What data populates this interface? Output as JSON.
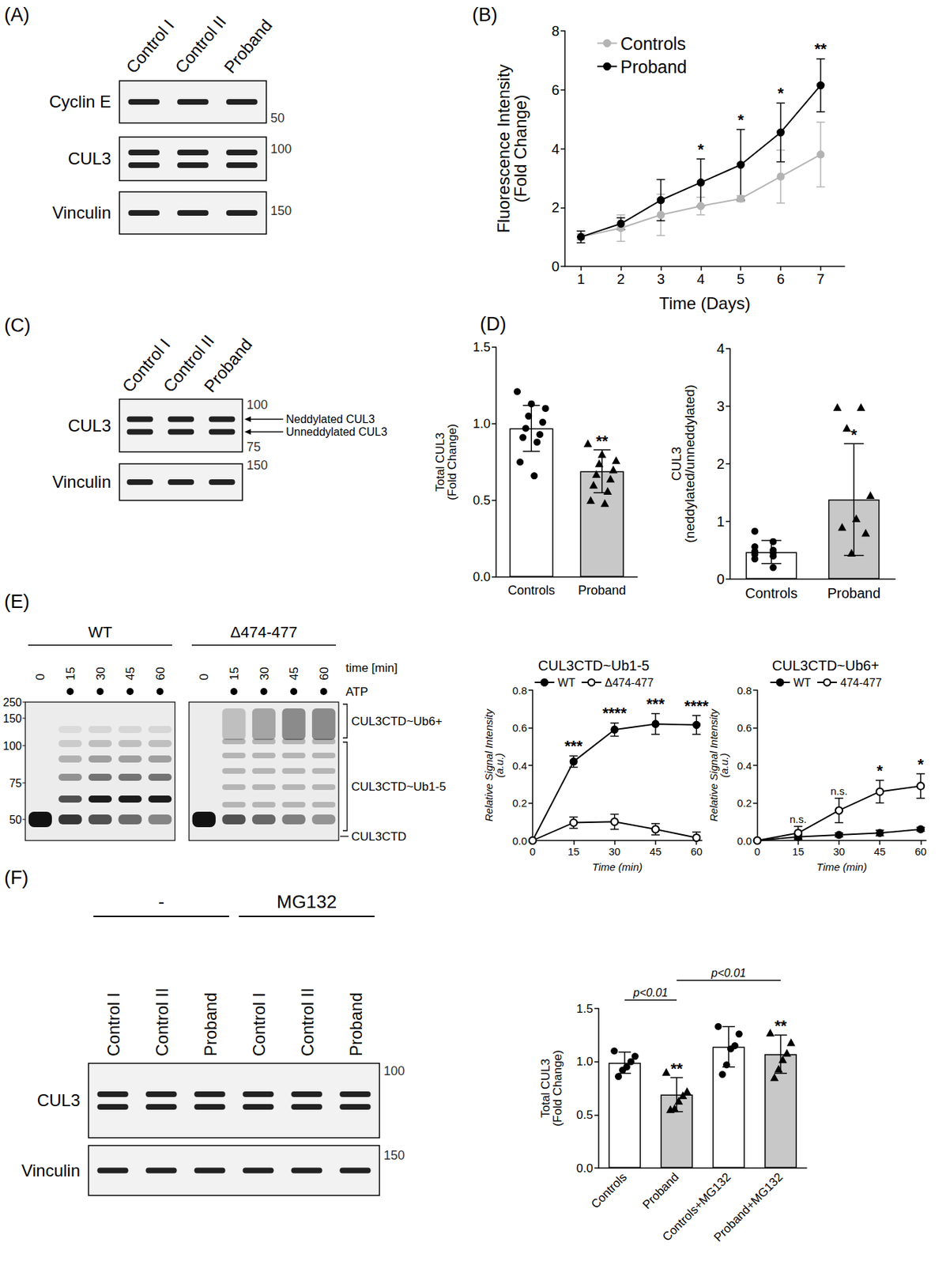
{
  "panel_labels": [
    "(A)",
    "(B)",
    "(C)",
    "(D)",
    "(E)",
    "(F)"
  ],
  "blots": [
    {
      "lanes": [
        "Control I",
        "Control II",
        "Proband"
      ],
      "rows": [
        {
          "label": "Cyclin E",
          "bands": 1,
          "markers": [
            50
          ]
        },
        {
          "label": "CUL3",
          "bands": 2,
          "markers": [
            100
          ]
        },
        {
          "label": "Vinculin",
          "bands": 1,
          "markers": [
            150
          ]
        }
      ]
    },
    {
      "lanes": [
        "Control I",
        "Control II",
        "Proband"
      ],
      "rows": [
        {
          "label": "CUL3",
          "bands": 2,
          "markers": [
            100,
            75
          ],
          "band_labels": [
            "Neddylated CUL3",
            "Unneddylated CUL3"
          ]
        },
        {
          "label": "Vinculin",
          "bands": 1,
          "markers": [
            150
          ]
        }
      ]
    },
    {
      "groups": [
        {
          "label": "-",
          "lanes": [
            "Control I",
            "Control II",
            "Proband"
          ]
        },
        {
          "label": "MG132",
          "lanes": [
            "Control I",
            "Control II",
            "Proband"
          ]
        }
      ],
      "rows": [
        {
          "label": "CUL3",
          "bands": 2,
          "markers": [
            100
          ]
        },
        {
          "label": "Vinculin",
          "bands": 1,
          "markers": [
            150
          ]
        }
      ]
    }
  ],
  "gel": {
    "groups": [
      {
        "label": "WT",
        "times": [
          0,
          15,
          30,
          45,
          60
        ],
        "atp": [
          false,
          true,
          true,
          true,
          true
        ]
      },
      {
        "label": "Δ474-477",
        "times": [
          0,
          15,
          30,
          45,
          60
        ],
        "atp": [
          false,
          true,
          true,
          true,
          true
        ]
      }
    ],
    "time_label": "time [min]",
    "atp_label": "ATP",
    "markers": [
      250,
      150,
      100,
      75,
      50
    ],
    "species": [
      "CUL3CTD~Ub6+",
      "CUL3CTD~Ub1-5",
      "CUL3CTD"
    ]
  },
  "chart_data": [
    {
      "type": "line",
      "x": [
        1,
        2,
        3,
        4,
        5,
        6,
        7
      ],
      "xlim": [
        0.6,
        7.6
      ],
      "xticks": [
        1,
        2,
        3,
        4,
        5,
        6,
        7
      ],
      "ylim": [
        0,
        8
      ],
      "yticks": [
        0,
        2,
        4,
        6,
        8
      ],
      "xlabel": "Time (Days)",
      "ylabel": "Fluorescence Intensity (Fold Change)",
      "legend": "top-left",
      "grid": false,
      "series": [
        {
          "name": "Controls",
          "color": "#b3b3b3",
          "marker": "circle",
          "values": [
            1.0,
            1.3,
            1.75,
            2.05,
            2.3,
            3.05,
            3.8
          ],
          "errors": [
            0.1,
            0.45,
            0.7,
            0.3,
            0.1,
            0.9,
            1.1
          ]
        },
        {
          "name": "Proband",
          "color": "#000000",
          "marker": "circle",
          "values": [
            1.0,
            1.45,
            2.25,
            2.85,
            3.45,
            4.55,
            6.15
          ],
          "errors": [
            0.2,
            0.2,
            0.7,
            0.8,
            1.2,
            1.0,
            0.9
          ],
          "annotations": [
            null,
            null,
            null,
            "*",
            "*",
            "*",
            "**"
          ]
        }
      ]
    },
    {
      "type": "bar",
      "categories": [
        "Controls",
        "Proband"
      ],
      "values": [
        0.97,
        0.69
      ],
      "errors": [
        0.15,
        0.14
      ],
      "colors": [
        "#ffffff",
        "#c8c8c8"
      ],
      "annotations": [
        null,
        "**"
      ],
      "points": [
        {
          "marker": "circle",
          "values": [
            1.21,
            1.13,
            1.1,
            1.05,
            1.01,
            0.97,
            0.93,
            0.91,
            0.88,
            0.75,
            0.66
          ]
        },
        {
          "marker": "triangle",
          "values": [
            0.87,
            0.8,
            0.76,
            0.74,
            0.7,
            0.67,
            0.64,
            0.6,
            0.56,
            0.5,
            0.48
          ]
        }
      ],
      "ylabel": "Total CUL3 (Fold Change)",
      "ylim": [
        0,
        1.5
      ],
      "yticks": [
        {
          "value": 0,
          "label": "0.0"
        },
        0.5,
        {
          "value": 1,
          "label": "1.0"
        },
        1.5
      ],
      "grid": false
    },
    {
      "type": "bar",
      "categories": [
        "Controls",
        "Proband"
      ],
      "values": [
        0.47,
        1.38
      ],
      "errors": [
        0.2,
        0.97
      ],
      "colors": [
        "#ffffff",
        "#c8c8c8"
      ],
      "annotations": [
        null,
        "*"
      ],
      "points": [
        {
          "marker": "circle",
          "values": [
            0.83,
            0.65,
            0.56,
            0.5,
            0.48,
            0.45,
            0.43,
            0.4,
            0.35,
            0.2
          ]
        },
        {
          "marker": "triangle",
          "values": [
            2.98,
            2.98,
            2.62,
            1.45,
            1.05,
            0.9,
            0.8,
            0.45
          ]
        }
      ],
      "ylabel": "CUL3 (neddylated/unneddylated)",
      "ylim": [
        0,
        4
      ],
      "yticks": [
        0,
        1,
        2,
        3,
        4
      ],
      "grid": false
    },
    {
      "type": "line",
      "title": "CUL3CTD~Ub1-5",
      "x": [
        0,
        15,
        30,
        45,
        60
      ],
      "xlim": [
        0,
        62
      ],
      "xticks": [
        0,
        15,
        30,
        45,
        60
      ],
      "ylim": [
        0,
        0.8
      ],
      "yticks": [
        {
          "value": 0,
          "label": "0.0"
        },
        0.2,
        0.4,
        0.6,
        0.8
      ],
      "xlabel": "Time (min)",
      "ylabel": "Relative Signal Intensity (a.u.)",
      "legend": "top",
      "grid": false,
      "series": [
        {
          "name": "WT",
          "color": "#000000",
          "marker": "circle",
          "values": [
            0,
            0.42,
            0.59,
            0.62,
            0.615
          ],
          "errors": [
            0,
            0.03,
            0.035,
            0.055,
            0.05
          ],
          "annotations": [
            null,
            "***",
            "****",
            "***",
            "****"
          ]
        },
        {
          "name": "Δ474-477",
          "color": "#000000",
          "marker": "open circle",
          "values": [
            0,
            0.095,
            0.1,
            0.06,
            0.015
          ],
          "errors": [
            0,
            0.03,
            0.04,
            0.03,
            0.03
          ]
        }
      ]
    },
    {
      "type": "line",
      "title": "CUL3CTD~Ub6+",
      "x": [
        0,
        15,
        30,
        45,
        60
      ],
      "xlim": [
        0,
        62
      ],
      "xticks": [
        0,
        15,
        30,
        45,
        60
      ],
      "ylim": [
        0,
        0.8
      ],
      "yticks": [
        {
          "value": 0,
          "label": "0.0"
        },
        0.2,
        0.4,
        0.6,
        0.8
      ],
      "xlabel": "Time (min)",
      "ylabel": "Relative Signal Intensity (a.u.)",
      "legend": "top",
      "grid": false,
      "series": [
        {
          "name": "WT",
          "color": "#000000",
          "marker": "circle",
          "values": [
            0,
            0.02,
            0.03,
            0.04,
            0.06
          ],
          "errors": [
            0,
            0.01,
            0.01,
            0.015,
            0.01
          ]
        },
        {
          "name": "474-477",
          "color": "#000000",
          "marker": "open circle",
          "values": [
            0,
            0.04,
            0.16,
            0.26,
            0.29
          ],
          "errors": [
            0,
            0.035,
            0.065,
            0.06,
            0.065
          ],
          "annotations": [
            null,
            "n.s.",
            "n.s.",
            "*",
            "*"
          ]
        }
      ]
    },
    {
      "type": "bar",
      "categories": [
        "Controls",
        "Proband",
        "Controls+MG132",
        "Proband+MG132"
      ],
      "values": [
        0.99,
        0.69,
        1.14,
        1.07
      ],
      "errors": [
        0.1,
        0.16,
        0.19,
        0.18
      ],
      "colors": [
        "#ffffff",
        "#c8c8c8",
        "#ffffff",
        "#c8c8c8"
      ],
      "annotations": [
        null,
        "**",
        null,
        "**"
      ],
      "points": [
        {
          "marker": "circle",
          "values": [
            1.1,
            1.05,
            1.0,
            0.95,
            0.92,
            0.86
          ]
        },
        {
          "marker": "triangle",
          "values": [
            0.9,
            0.72,
            0.68,
            0.63,
            0.56,
            0.55
          ]
        },
        {
          "marker": "circle",
          "values": [
            1.33,
            1.26,
            1.15,
            1.12,
            0.97,
            0.88
          ]
        },
        {
          "marker": "triangle",
          "values": [
            1.27,
            1.18,
            1.08,
            1.02,
            0.93,
            0.85
          ]
        }
      ],
      "comparisons": [
        {
          "from": 0,
          "to": 1,
          "label": "p<0.01"
        },
        {
          "from": 1,
          "to": 3,
          "label": "p<0.01"
        }
      ],
      "ylabel": "Total CUL3 (Fold Change)",
      "ylim": [
        0,
        1.5
      ],
      "yticks": [
        {
          "value": 0,
          "label": "0.0"
        },
        0.5,
        {
          "value": 1,
          "label": "1.0"
        },
        1.5
      ],
      "grid": false
    }
  ]
}
